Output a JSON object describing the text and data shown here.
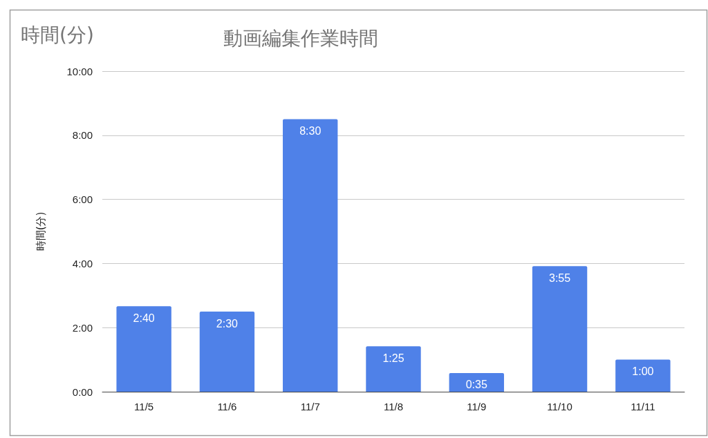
{
  "chart_data": {
    "type": "bar",
    "title": "動画編集作業時間",
    "annotations": [
      "時間(分)"
    ],
    "ylabel": "時間(分)",
    "categories": [
      "11/5",
      "11/6",
      "11/7",
      "11/8",
      "11/9",
      "11/10",
      "11/11"
    ],
    "values": [
      2.6667,
      2.5,
      8.5,
      1.4167,
      0.5833,
      3.9167,
      1
    ],
    "value_labels": [
      "2:40",
      "2:30",
      "8:30",
      "1:25",
      "0:35",
      "3:55",
      "1:00"
    ],
    "color": "#4f81e8",
    "ylim": [
      0,
      10
    ],
    "yticks": [
      {
        "value": 0,
        "label": "0:00"
      },
      {
        "value": 2,
        "label": "2:00"
      },
      {
        "value": 4,
        "label": "4:00"
      },
      {
        "value": 6,
        "label": "6:00"
      },
      {
        "value": 8,
        "label": "8:00"
      },
      {
        "value": 10,
        "label": "10:00"
      }
    ],
    "grid": "y"
  }
}
